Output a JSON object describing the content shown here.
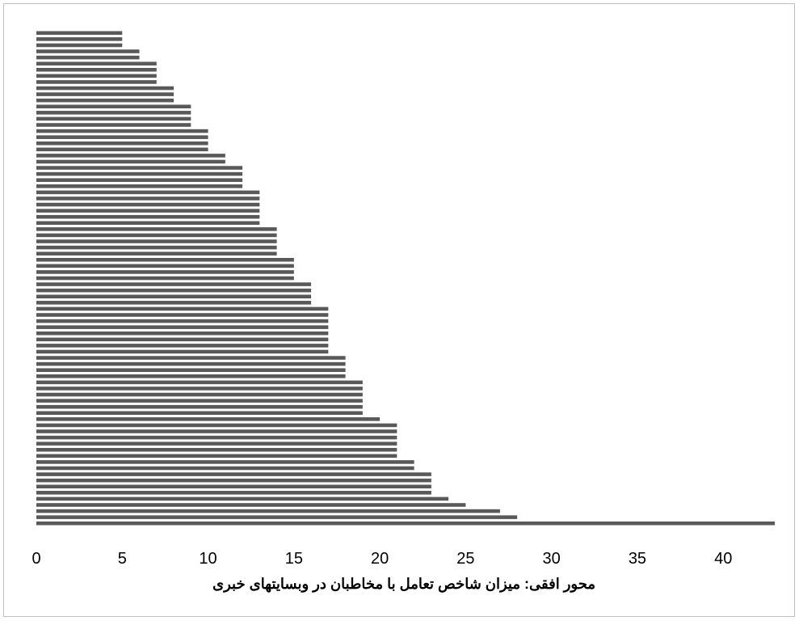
{
  "chart_data": {
    "type": "bar",
    "orientation": "horizontal",
    "xlabel": "محور افقی: میزان شاخص تعامل با مخاطبان در وبسایتهای خبری",
    "ylabel": "",
    "xlim": [
      0,
      43
    ],
    "xticks": [
      0,
      5,
      10,
      15,
      20,
      25,
      30,
      35,
      40
    ],
    "grid": false,
    "bar_color": "#595959",
    "values": [
      5,
      5,
      5,
      6,
      6,
      7,
      7,
      7,
      7,
      8,
      8,
      8,
      9,
      9,
      9,
      9,
      10,
      10,
      10,
      10,
      11,
      11,
      12,
      12,
      12,
      12,
      13,
      13,
      13,
      13,
      13,
      13,
      14,
      14,
      14,
      14,
      14,
      15,
      15,
      15,
      15,
      16,
      16,
      16,
      16,
      17,
      17,
      17,
      17,
      17,
      17,
      17,
      17,
      18,
      18,
      18,
      18,
      19,
      19,
      19,
      19,
      19,
      19,
      20,
      21,
      21,
      21,
      21,
      21,
      21,
      22,
      22,
      23,
      23,
      23,
      23,
      24,
      25,
      27,
      28,
      43
    ]
  }
}
